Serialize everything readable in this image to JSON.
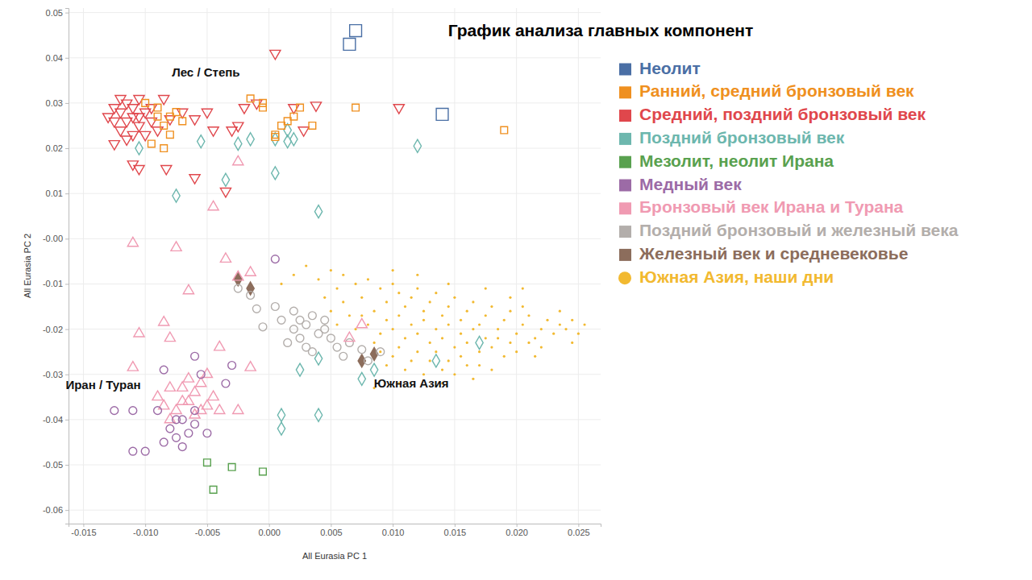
{
  "chart_data": {
    "type": "scatter",
    "title": "График анализа главных компонент",
    "x_label": "All Eurasia PC 1",
    "y_label": "All Eurasia PC 2",
    "xlim": [
      -0.0162,
      0.0268
    ],
    "ylim": [
      -0.063,
      0.051
    ],
    "xticks": [
      -0.015,
      {
        "value": -0.01,
        "label": "-0.010"
      },
      -0.005,
      {
        "value": 0,
        "label": "0.000"
      },
      0.005,
      {
        "value": 0.01,
        "label": "0.010"
      },
      0.015,
      {
        "value": 0.02,
        "label": "0.020"
      },
      0.025
    ],
    "yticks": [
      0.05,
      0.04,
      0.03,
      0.02,
      0.01,
      {
        "value": 0,
        "label": "-0.00"
      },
      -0.01,
      -0.02,
      -0.03,
      -0.04,
      -0.05,
      -0.06
    ],
    "grid": true,
    "legend": "right",
    "annotations": [
      {
        "text": "Лес / Степь",
        "x": -0.0051,
        "y": 0.0366
      },
      {
        "text": "Иран / Туран",
        "x": -0.0134,
        "y": -0.0325
      },
      {
        "text": "Южная Азия",
        "x": 0.0115,
        "y": -0.0322
      }
    ],
    "series": [
      {
        "name": "Неолит",
        "color": "#4a6fa5",
        "marker": "square-open",
        "x": [
          0.0065,
          0.007,
          0.014
        ],
        "values": [
          0.043,
          0.046,
          0.0275
        ]
      },
      {
        "name": "Ранний, средний бронзовый век",
        "color": "#ef9020",
        "marker": "square-open",
        "x": [
          -0.009,
          -0.0085,
          -0.008,
          -0.0095,
          -0.0075,
          -0.01,
          -0.0085,
          -0.007,
          -0.009,
          -0.008,
          -0.0015,
          -0.0005,
          0.0005,
          0.001,
          0.0015,
          0.002,
          0.0025,
          0.0035,
          0.007,
          0.019,
          0.0005,
          -0.0005
        ],
        "values": [
          0.027,
          0.025,
          0.023,
          0.021,
          0.028,
          0.03,
          0.02,
          0.026,
          0.029,
          0.027,
          0.031,
          0.029,
          0.023,
          0.025,
          0.026,
          0.027,
          0.029,
          0.025,
          0.029,
          0.024,
          0.0225,
          0.03
        ]
      },
      {
        "name": "Средний, поздний бронзовый век",
        "color": "#e0474c",
        "marker": "triangle-down-open",
        "x": [
          -0.0125,
          -0.012,
          -0.0115,
          -0.011,
          -0.0105,
          -0.01,
          -0.0095,
          -0.012,
          -0.0115,
          -0.011,
          -0.0105,
          -0.01,
          -0.0125,
          -0.013,
          -0.0095,
          -0.009,
          -0.0115,
          -0.0105,
          -0.012,
          -0.011,
          -0.0125,
          -0.0085,
          -0.008,
          -0.007,
          -0.006,
          -0.005,
          -0.0045,
          -0.003,
          -0.0025,
          -0.002,
          -0.001,
          0.0005,
          0.002,
          0.0028,
          0.0038,
          0.0105,
          -0.006,
          -0.0035,
          -0.011,
          -0.0105,
          -0.0083
        ],
        "values": [
          0.026,
          0.028,
          0.03,
          0.027,
          0.025,
          0.028,
          0.026,
          0.024,
          0.022,
          0.029,
          0.031,
          0.023,
          0.029,
          0.027,
          0.029,
          0.024,
          0.026,
          0.027,
          0.031,
          0.023,
          0.021,
          0.031,
          0.0265,
          0.028,
          0.0265,
          0.028,
          0.024,
          0.024,
          0.025,
          0.029,
          0.03,
          0.041,
          0.029,
          0.024,
          0.0295,
          0.029,
          0.0135,
          0.0105,
          0.0165,
          0.0155,
          0.0155
        ]
      },
      {
        "name": "Поздний бронзовый век",
        "color": "#6db7ae",
        "marker": "diamond-open",
        "x": [
          -0.0055,
          -0.0025,
          -0.0015,
          0.0005,
          0.0015,
          0.002,
          0.0015,
          -0.0075,
          -0.0035,
          0.0005,
          0.012,
          0.004,
          -0.0105,
          0.0025,
          0.004,
          0.001,
          0.001,
          0.004,
          0.0075,
          0.0085,
          0.0135,
          0.017
        ],
        "values": [
          0.0215,
          0.021,
          0.022,
          0.022,
          0.0215,
          0.022,
          0.024,
          0.0095,
          0.013,
          0.0145,
          0.0205,
          0.006,
          0.02,
          -0.029,
          -0.0265,
          -0.039,
          -0.042,
          -0.039,
          -0.031,
          -0.029,
          -0.027,
          -0.023
        ]
      },
      {
        "name": "Мезолит, неолит Ирана",
        "color": "#59a14f",
        "marker": "square-open",
        "x": [
          -0.005,
          -0.003,
          -0.0045,
          -0.0005
        ],
        "values": [
          -0.0495,
          -0.0505,
          -0.0555,
          -0.0515
        ]
      },
      {
        "name": "Медный век",
        "color": "#9c6ba6",
        "marker": "circle-open",
        "x": [
          -0.0125,
          -0.011,
          -0.009,
          -0.011,
          -0.01,
          -0.008,
          -0.0075,
          -0.007,
          -0.0065,
          -0.006,
          -0.0085,
          -0.006,
          -0.0055,
          -0.006,
          -0.003,
          -0.0035,
          -0.0085,
          -0.0075,
          -0.007,
          0.0005,
          -0.005
        ],
        "values": [
          -0.038,
          -0.038,
          -0.038,
          -0.047,
          -0.047,
          -0.042,
          -0.044,
          -0.04,
          -0.043,
          -0.041,
          -0.045,
          -0.038,
          -0.03,
          -0.026,
          -0.028,
          -0.032,
          -0.029,
          -0.04,
          -0.046,
          -0.0045,
          -0.043
        ]
      },
      {
        "name": "Бронзовый век Ирана и Турана",
        "color": "#f09ab2",
        "marker": "triangle-open",
        "x": [
          -0.009,
          -0.008,
          -0.007,
          -0.006,
          -0.005,
          -0.0065,
          -0.0075,
          -0.0055,
          -0.0045,
          -0.006,
          -0.007,
          -0.0085,
          -0.005,
          -0.004,
          -0.008,
          -0.0065,
          -0.0055,
          -0.011,
          -0.0075,
          -0.0065,
          -0.0085,
          -0.0035,
          -0.0025,
          -0.0045,
          -0.0025,
          -0.008,
          -0.0105,
          -0.011,
          -0.0015,
          -0.0025,
          -0.004,
          0.0075,
          0.0065,
          -0.0015
        ],
        "values": [
          -0.035,
          -0.033,
          -0.036,
          -0.034,
          -0.037,
          -0.031,
          -0.038,
          -0.032,
          -0.035,
          -0.039,
          -0.033,
          -0.037,
          -0.03,
          -0.038,
          -0.04,
          -0.036,
          -0.038,
          -0.001,
          -0.002,
          -0.0115,
          -0.0185,
          -0.0045,
          -0.0085,
          0.007,
          0.017,
          -0.022,
          -0.021,
          -0.0285,
          -0.0285,
          -0.038,
          -0.024,
          -0.019,
          -0.022,
          -0.0075
        ]
      },
      {
        "name": "Поздний бронзовый и железный века",
        "color": "#b3aeab",
        "marker": "circle-open",
        "x": [
          0.001,
          0.002,
          0.003,
          0.004,
          0.0025,
          0.0035,
          0.0015,
          0.0045,
          0.003,
          0.002,
          0.005,
          0.0055,
          0.006,
          0.0065,
          0.0075,
          0.008,
          0.0005,
          -0.0005,
          -0.001,
          0.0035,
          0.0045,
          0.0025,
          -0.0015,
          -0.0025,
          0.009
        ],
        "values": [
          -0.018,
          -0.02,
          -0.019,
          -0.021,
          -0.022,
          -0.017,
          -0.023,
          -0.018,
          -0.024,
          -0.016,
          -0.022,
          -0.024,
          -0.026,
          -0.023,
          -0.0245,
          -0.027,
          -0.015,
          -0.0195,
          -0.0155,
          -0.025,
          -0.02,
          -0.018,
          -0.0125,
          -0.011,
          -0.025
        ]
      },
      {
        "name": "Железный век и средневековье",
        "color": "#8c6d5c",
        "marker": "diamond-filled",
        "x": [
          -0.0025,
          -0.0015,
          0.0085,
          0.0075
        ],
        "values": [
          -0.009,
          -0.011,
          -0.0255,
          -0.027
        ]
      },
      {
        "name": "Южная Азия, наши дни",
        "color": "#f2b930",
        "marker": "dot",
        "x": [
          0.001,
          0.002,
          0.003,
          0.004,
          0.005,
          0.006,
          0.0055,
          0.007,
          0.0075,
          0.008,
          0.009,
          0.0095,
          0.01,
          0.0105,
          0.011,
          0.0115,
          0.012,
          0.0125,
          0.013,
          0.0135,
          0.014,
          0.0145,
          0.015,
          0.0155,
          0.016,
          0.0165,
          0.017,
          0.0175,
          0.018,
          0.0185,
          0.019,
          0.0195,
          0.02,
          0.0205,
          0.021,
          0.0215,
          0.022,
          0.0225,
          0.023,
          0.0235,
          0.024,
          0.0245,
          0.025,
          0.0255,
          0.0075,
          0.008,
          0.0085,
          0.009,
          0.0095,
          0.01,
          0.0105,
          0.011,
          0.0115,
          0.012,
          0.0125,
          0.013,
          0.0135,
          0.014,
          0.0145,
          0.015,
          0.0155,
          0.016,
          0.0165,
          0.017,
          0.0175,
          0.018,
          0.0185,
          0.019,
          0.0195,
          0.02,
          0.021,
          0.022,
          0.006,
          0.0065,
          0.007,
          0.0055,
          0.005,
          0.0045,
          0.0085,
          0.009,
          0.0095,
          0.01,
          0.0105,
          0.011,
          0.0115,
          0.012,
          0.0125,
          0.013,
          0.0135,
          0.014,
          0.0145,
          0.015,
          0.0155,
          0.016,
          0.0165,
          0.017,
          0.018,
          0.0085,
          0.0105,
          0.014,
          0.0175,
          0.0195,
          0.0205,
          0.0235,
          0.0245,
          0.0215,
          0.012,
          0.0145,
          0.01,
          0.0205
        ],
        "values": [
          -0.01,
          -0.008,
          -0.006,
          -0.009,
          -0.007,
          -0.008,
          -0.011,
          -0.01,
          -0.013,
          -0.009,
          -0.011,
          -0.014,
          -0.01,
          -0.012,
          -0.015,
          -0.013,
          -0.011,
          -0.016,
          -0.014,
          -0.012,
          -0.017,
          -0.015,
          -0.013,
          -0.018,
          -0.016,
          -0.014,
          -0.019,
          -0.017,
          -0.015,
          -0.02,
          -0.018,
          -0.016,
          -0.021,
          -0.019,
          -0.017,
          -0.022,
          -0.02,
          -0.018,
          -0.021,
          -0.019,
          -0.02,
          -0.018,
          -0.021,
          -0.019,
          -0.017,
          -0.019,
          -0.016,
          -0.021,
          -0.018,
          -0.02,
          -0.017,
          -0.022,
          -0.019,
          -0.021,
          -0.018,
          -0.023,
          -0.02,
          -0.022,
          -0.019,
          -0.024,
          -0.021,
          -0.023,
          -0.02,
          -0.025,
          -0.022,
          -0.024,
          -0.022,
          -0.026,
          -0.023,
          -0.025,
          -0.023,
          -0.024,
          -0.014,
          -0.017,
          -0.02,
          -0.019,
          -0.016,
          -0.013,
          -0.023,
          -0.025,
          -0.028,
          -0.026,
          -0.024,
          -0.029,
          -0.027,
          -0.025,
          -0.03,
          -0.027,
          -0.025,
          -0.029,
          -0.027,
          -0.03,
          -0.026,
          -0.028,
          -0.031,
          -0.028,
          -0.029,
          -0.033,
          -0.032,
          -0.032,
          -0.011,
          -0.013,
          -0.015,
          -0.016,
          -0.023,
          -0.026,
          -0.008,
          -0.01,
          -0.007,
          -0.011
        ]
      }
    ]
  }
}
